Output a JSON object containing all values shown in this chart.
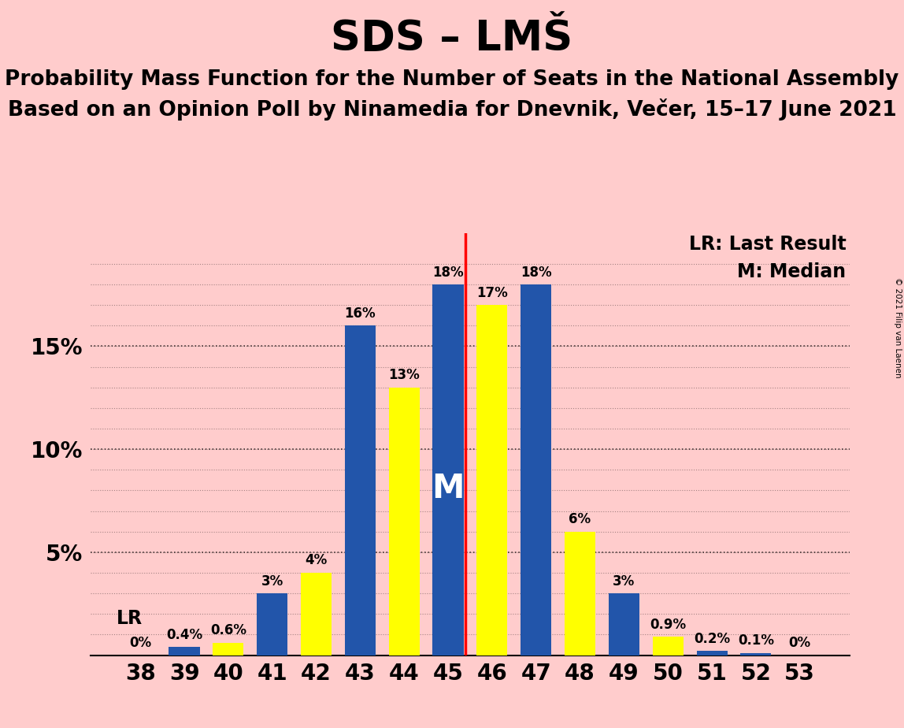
{
  "title": "SDS – LMŠ",
  "subtitle1": "Probability Mass Function for the Number of Seats in the National Assembly",
  "subtitle2": "Based on an Opinion Poll by Ninamedia for Dnevnik, Večer, 15–17 June 2021",
  "copyright": "© 2021 Filip van Laenen",
  "seats": [
    38,
    39,
    40,
    41,
    42,
    43,
    44,
    45,
    46,
    47,
    48,
    49,
    50,
    51,
    52,
    53
  ],
  "values": [
    0.0,
    0.4,
    0.6,
    3.0,
    4.0,
    16.0,
    13.0,
    18.0,
    17.0,
    18.0,
    6.0,
    3.0,
    0.9,
    0.2,
    0.1,
    0.0
  ],
  "bar_colors": [
    "#2255AA",
    "#2255AA",
    "#FFFF00",
    "#2255AA",
    "#FFFF00",
    "#2255AA",
    "#FFFF00",
    "#2255AA",
    "#FFFF00",
    "#2255AA",
    "#FFFF00",
    "#2255AA",
    "#FFFF00",
    "#2255AA",
    "#2255AA",
    "#2255AA"
  ],
  "bar_labels": [
    "0%",
    "0.4%",
    "0.6%",
    "3%",
    "4%",
    "16%",
    "13%",
    "18%",
    "17%",
    "18%",
    "6%",
    "3%",
    "0.9%",
    "0.2%",
    "0.1%",
    "0%"
  ],
  "blue_color": "#2255AA",
  "yellow_color": "#FFFF00",
  "background_color": "#FFCCCC",
  "median_seat": 45,
  "median_label": "M",
  "lr_label": "LR",
  "legend_lr": "LR: Last Result",
  "legend_m": "M: Median",
  "red_line_after_seat": 45,
  "ytick_positions": [
    0,
    5,
    10,
    15
  ],
  "ytick_labels": [
    "",
    "5%",
    "10%",
    "15%"
  ],
  "ylim": [
    0,
    20.5
  ],
  "title_fontsize": 38,
  "subtitle_fontsize": 19,
  "bar_width": 0.7,
  "label_fontsize": 12,
  "tick_fontsize": 20
}
